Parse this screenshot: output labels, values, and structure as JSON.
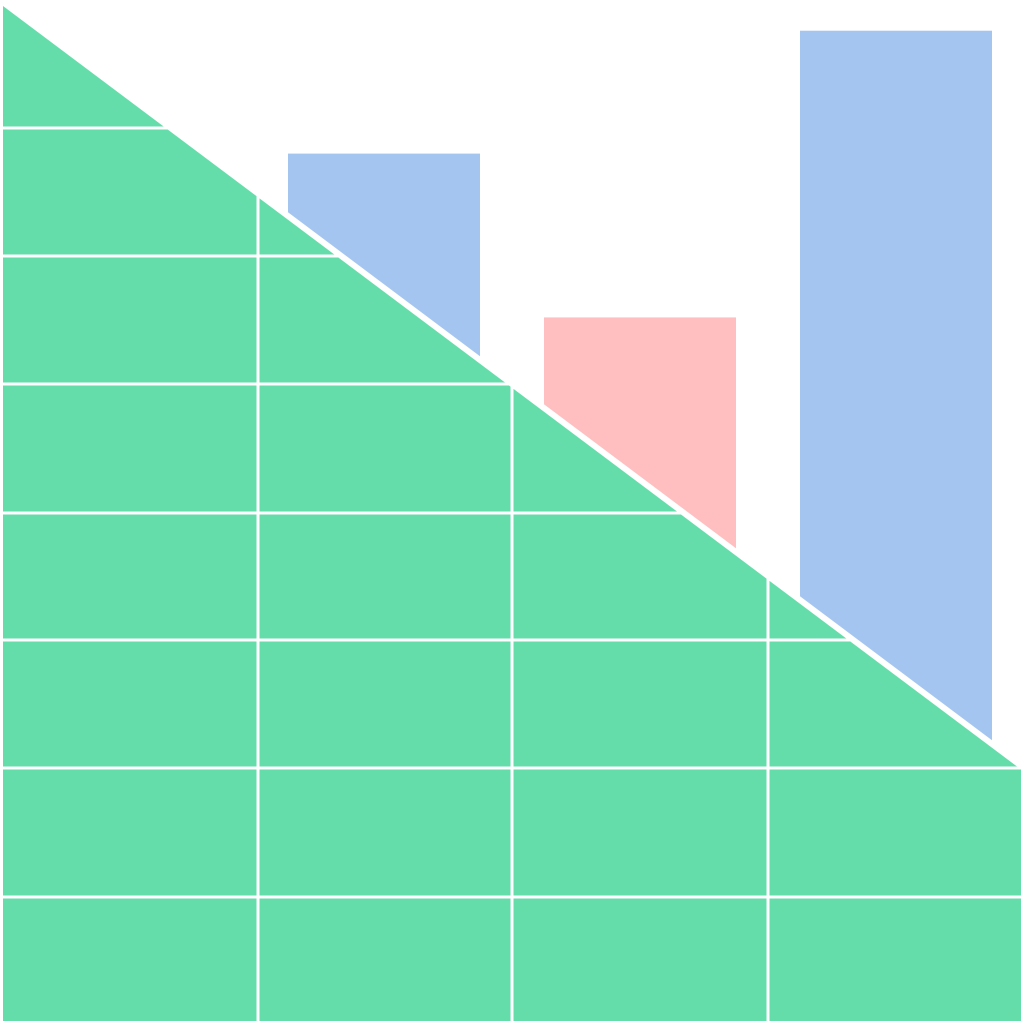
{
  "colors": {
    "background": "#ffffff",
    "ground": "#64ddab",
    "grid": "#ffffff",
    "bar_primary": "#a3c5ef",
    "bar_accent": "#ffbec0"
  },
  "bars": [
    {
      "color_key": "bar_primary",
      "level": 0.85
    },
    {
      "color_key": "bar_accent",
      "level": 0.69
    },
    {
      "color_key": "bar_primary",
      "level": 0.97
    }
  ],
  "icons": [
    "bar-chart-graphic",
    "grid-slope-graphic"
  ]
}
